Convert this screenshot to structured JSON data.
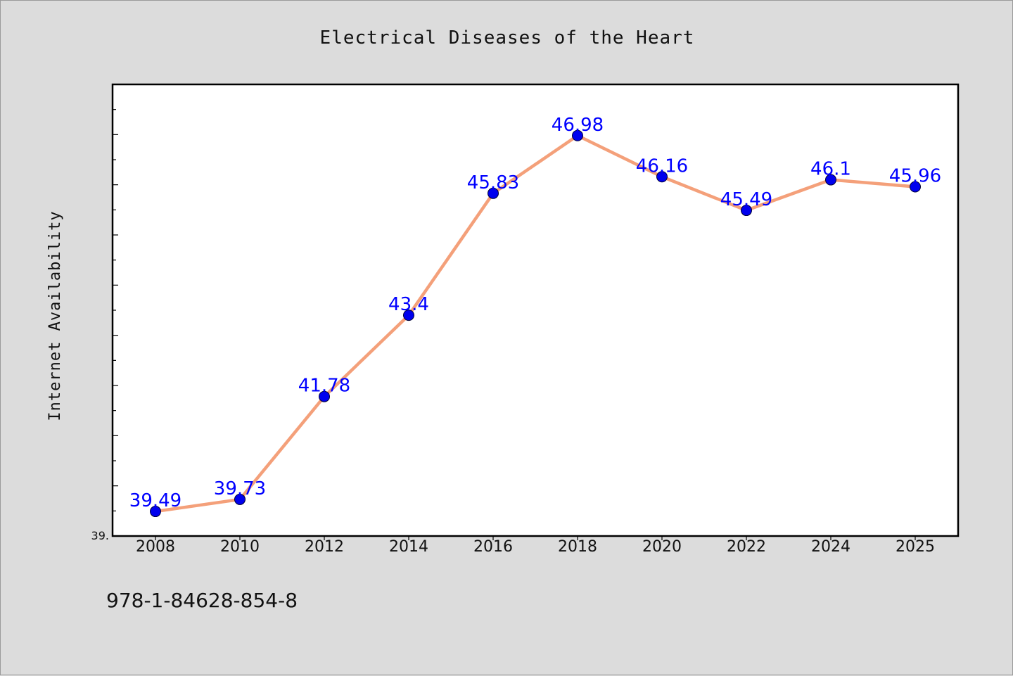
{
  "footnote": "978-1-84628-854-8",
  "y_tick_label": "39.",
  "chart_data": {
    "type": "line",
    "title": "Electrical Diseases of the Heart",
    "xlabel": "",
    "ylabel": "Internet Availability",
    "categories": [
      "2008",
      "2010",
      "2012",
      "2014",
      "2016",
      "2018",
      "2020",
      "2022",
      "2024",
      "2025"
    ],
    "series": [
      {
        "values": [
          39.49,
          39.73,
          41.78,
          43.4,
          45.83,
          46.98,
          46.16,
          45.49,
          46.1,
          45.96
        ],
        "data_labels": [
          "39.49",
          "39.73",
          "41.78",
          "43.4",
          "45.83",
          "46.98",
          "46.16",
          "45.49",
          "46.1",
          "45.96"
        ],
        "line_color": "#f4a07a",
        "marker_color": "#0000ee"
      }
    ],
    "ylim": [
      39.0,
      48.0
    ],
    "grid": false,
    "legend": "none"
  }
}
